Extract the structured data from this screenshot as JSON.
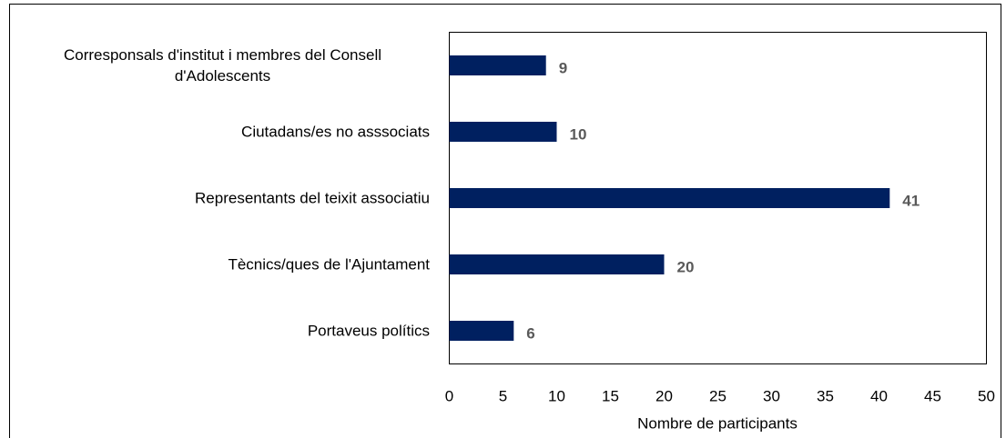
{
  "chart_data": {
    "type": "bar",
    "orientation": "horizontal",
    "categories": [
      "Corresponsals d'institut i membres del Consell d'Adolescents",
      "Ciutadans/es no asssociats",
      "Representants del teixit associatiu",
      "Tècnics/ques de l'Ajuntament",
      "Portaveus polítics"
    ],
    "values": [
      9,
      10,
      41,
      20,
      6
    ],
    "color": "#002060",
    "xlabel": "Nombre de participants",
    "xlim": [
      0,
      50
    ],
    "xticks": [
      0,
      5,
      10,
      15,
      20,
      25,
      30,
      35,
      40,
      45,
      50
    ]
  }
}
